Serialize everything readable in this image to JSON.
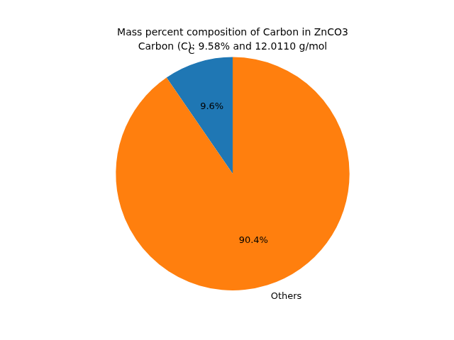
{
  "chart_data": {
    "type": "pie",
    "title": "Mass percent composition of Carbon in ZnCO3",
    "subtitle": "Carbon (C): 9.58% and 12.0110 g/mol",
    "categories": [
      "C",
      "Others"
    ],
    "values": [
      9.58,
      90.42
    ],
    "value_labels": [
      "9.6%",
      "90.4%"
    ],
    "colors": [
      "#1f77b4",
      "#ff7f0e"
    ],
    "data_labels": true
  }
}
